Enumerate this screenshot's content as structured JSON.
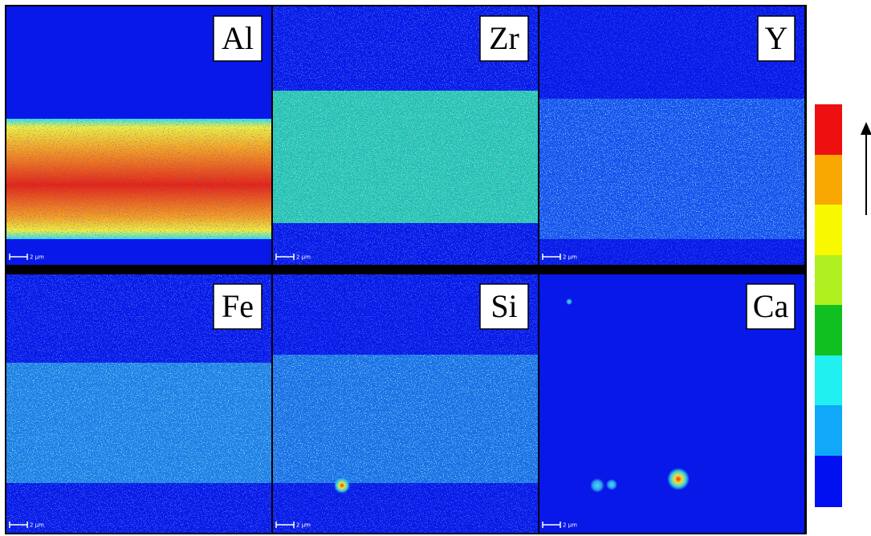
{
  "panels": [
    {
      "label": "Al",
      "scale": "2 µm"
    },
    {
      "label": "Zr",
      "scale": "2 µm"
    },
    {
      "label": "Y",
      "scale": "2 µm"
    },
    {
      "label": "Fe",
      "scale": "2 µm"
    },
    {
      "label": "Si",
      "scale": "2 µm"
    },
    {
      "label": "Ca",
      "scale": "2 µm"
    }
  ]
}
